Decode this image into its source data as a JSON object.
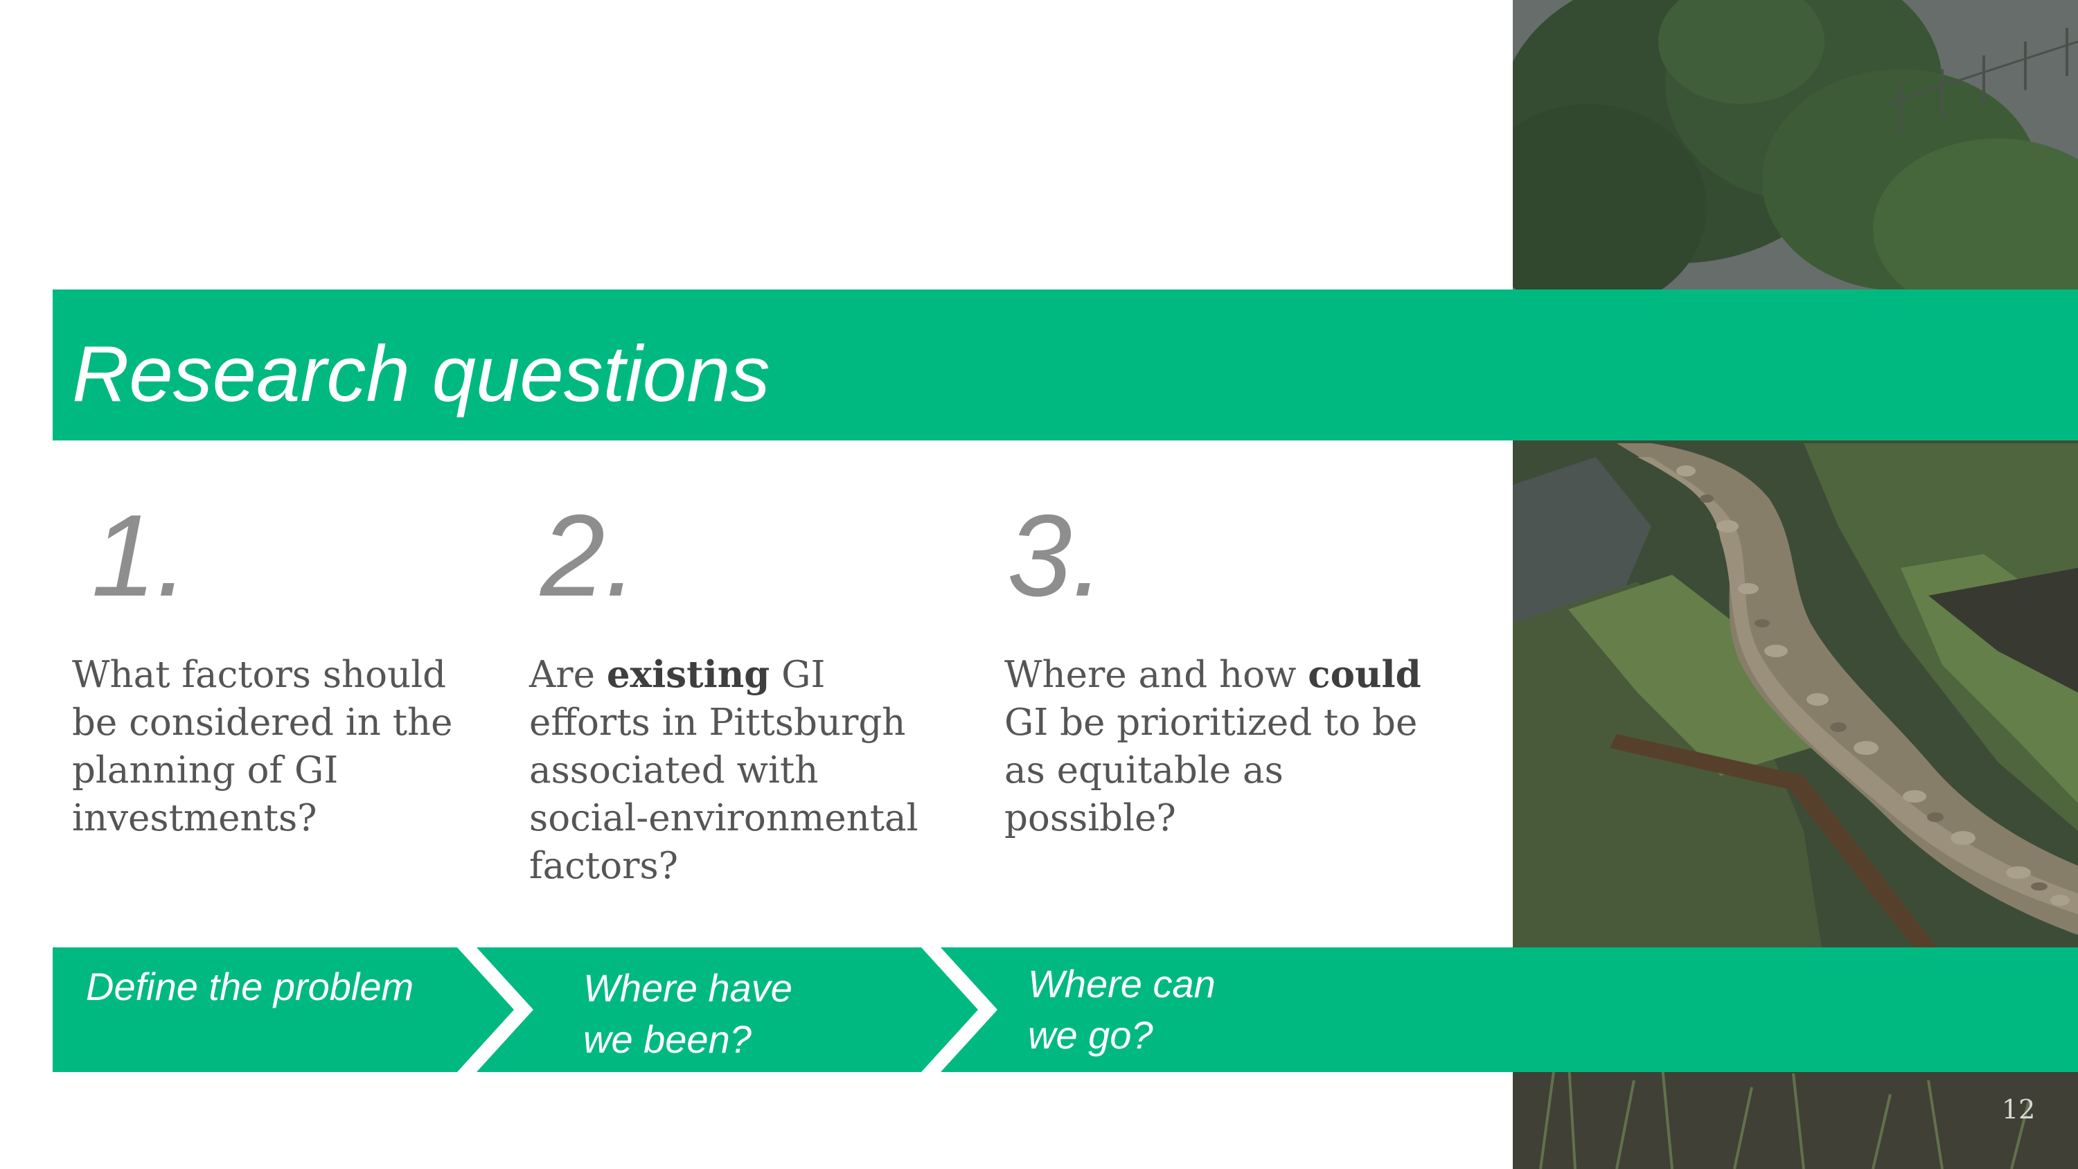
{
  "slide": {
    "title": "Research questions",
    "page_number": "12"
  },
  "questions": [
    {
      "number": "1.",
      "text_before": "What factors should be considered in the planning of GI investments?",
      "bold": "",
      "text_after": ""
    },
    {
      "number": "2.",
      "text_before": "Are ",
      "bold": "existing",
      "text_after": " GI efforts in Pittsburgh associated with social-environmental factors?"
    },
    {
      "number": "3.",
      "text_before": "Where and how ",
      "bold": "could",
      "text_after": " GI be prioritized to be as equitable as possible?"
    }
  ],
  "steps": [
    {
      "line1": "Define the problem",
      "line2": ""
    },
    {
      "line1": "Where have",
      "line2": "we been?"
    },
    {
      "line1": "Where can",
      "line2": "we go?"
    }
  ],
  "colors": {
    "accent": "#00b981",
    "number": "#8e8e8e",
    "body_text": "#555555"
  }
}
